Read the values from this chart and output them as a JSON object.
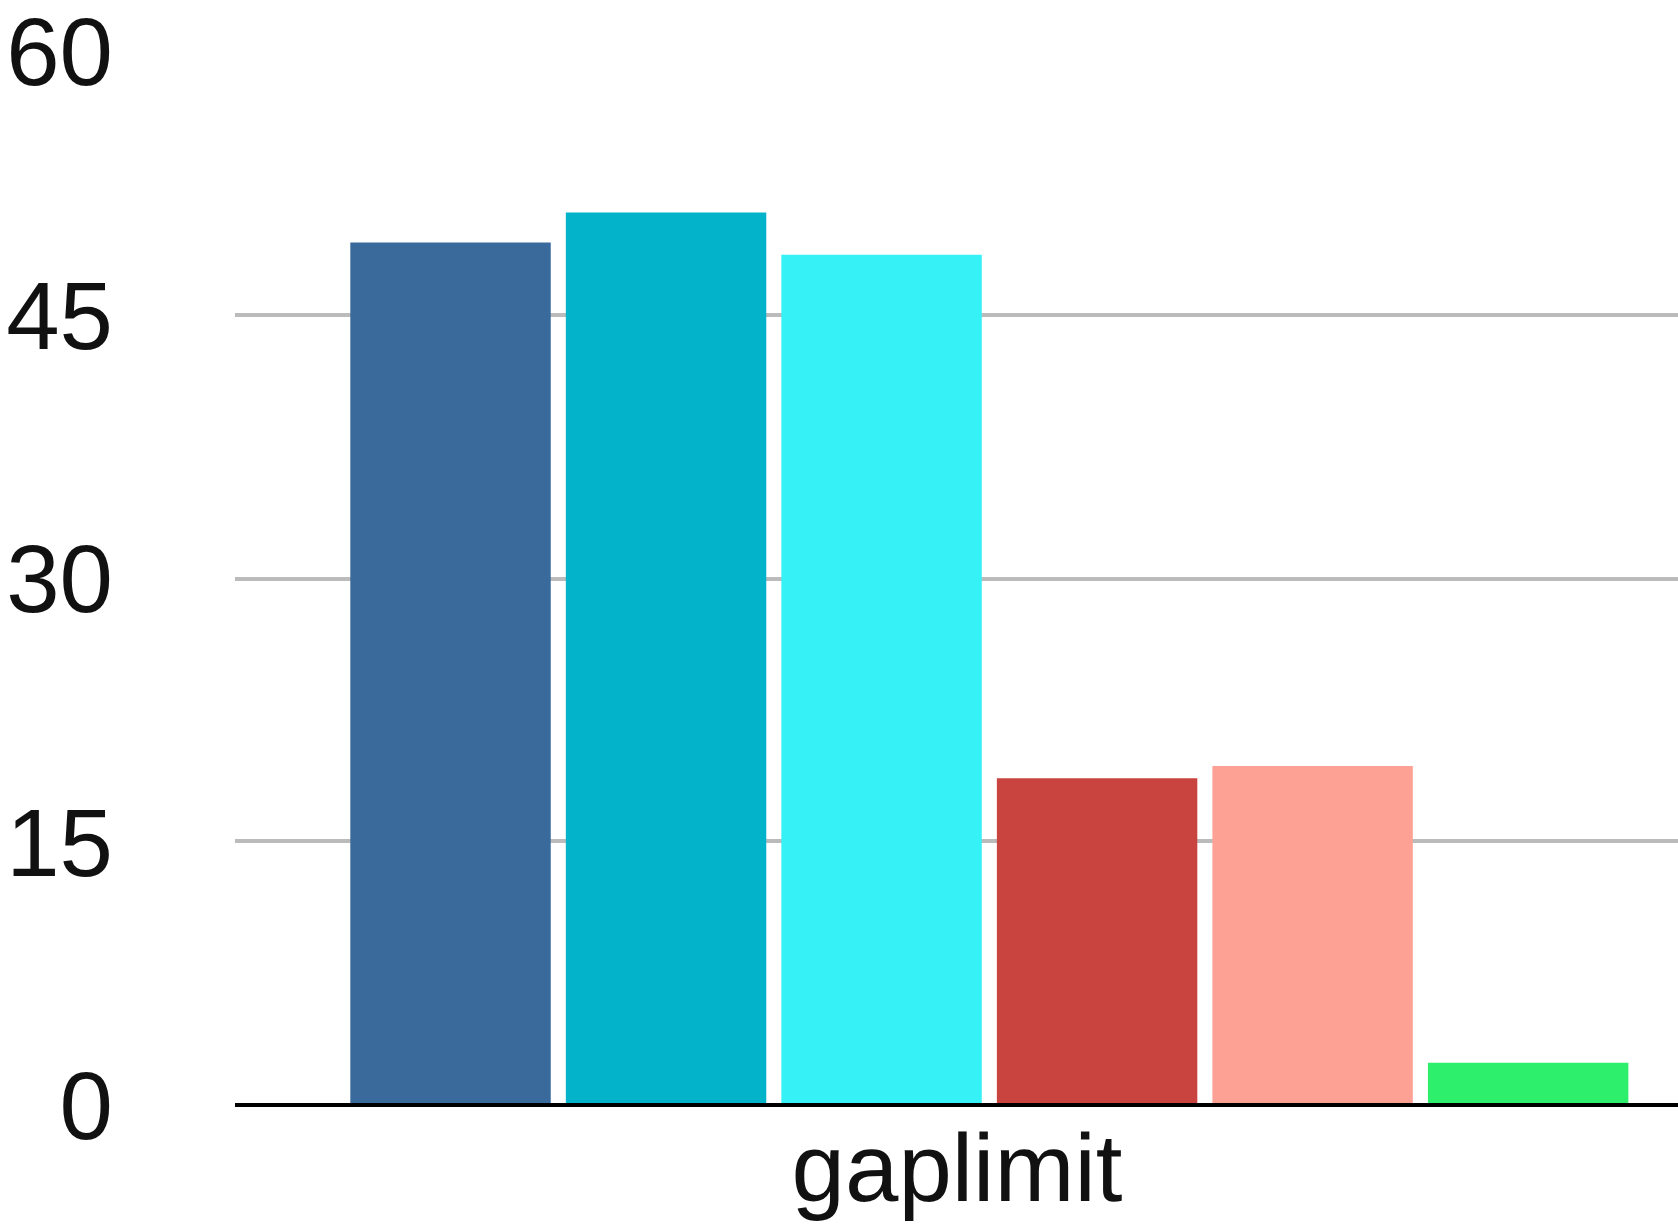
{
  "chart_data": {
    "type": "bar",
    "xlabel": "gaplimit",
    "categories": [
      null,
      null,
      null,
      null,
      null,
      null
    ],
    "values": [
      49.1,
      50.8,
      48.4,
      18.6,
      19.3,
      2.4
    ],
    "colors": [
      "#3a6a9c",
      "#02b3c9",
      "#36f1f5",
      "#c9443f",
      "#fea195",
      "#2def6b"
    ],
    "ylim": [
      0,
      60
    ],
    "yticks": [
      0,
      15,
      30,
      45,
      60
    ],
    "grid": "y"
  }
}
